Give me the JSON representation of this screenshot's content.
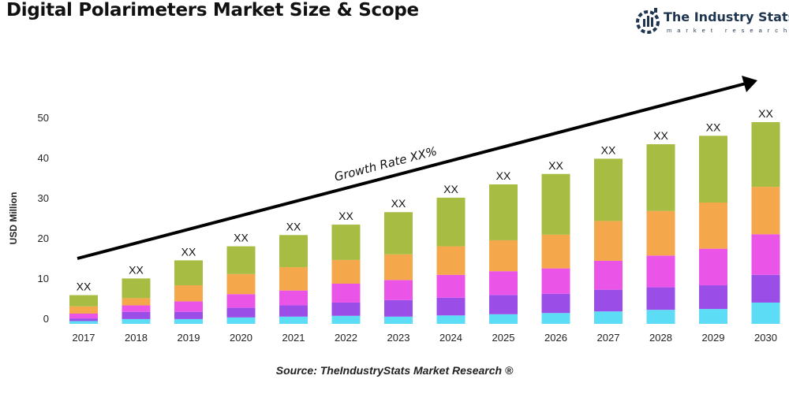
{
  "title": "Digital Polarimeters Market Size & Scope",
  "logo": {
    "name": "The Industry Stats",
    "sub": "market research"
  },
  "source": "Source: TheIndustryStats Market Research ®",
  "chart_data": {
    "type": "bar",
    "stacked": true,
    "title": "Digital Polarimeters Market Size & Scope",
    "xlabel": "",
    "ylabel": "USD Million",
    "ylim": [
      0,
      50
    ],
    "yticks": [
      0,
      10,
      20,
      30,
      40,
      50
    ],
    "grid": false,
    "categories": [
      "2017",
      "2018",
      "2019",
      "2020",
      "2021",
      "2022",
      "2023",
      "2024",
      "2025",
      "2026",
      "2027",
      "2028",
      "2029",
      "2030"
    ],
    "series": [
      {
        "color": "#5ddcf5",
        "values": [
          0.7,
          1.2,
          1.2,
          1.6,
          1.8,
          2.0,
          1.8,
          2.1,
          2.4,
          2.7,
          3.1,
          3.5,
          3.7,
          5.3
        ]
      },
      {
        "color": "#9b4de8",
        "values": [
          0.65,
          1.8,
          1.8,
          2.4,
          2.8,
          3.3,
          4.1,
          4.4,
          4.8,
          4.8,
          5.4,
          5.6,
          5.9,
          6.9
        ]
      },
      {
        "color": "#ea55e8",
        "values": [
          1.2,
          1.6,
          2.6,
          3.4,
          3.7,
          4.7,
          5.0,
          5.7,
          5.9,
          6.3,
          7.2,
          7.9,
          9.1,
          10.1
        ]
      },
      {
        "color": "#f4a74b",
        "values": [
          1.8,
          1.8,
          4.0,
          5.0,
          5.8,
          5.9,
          6.4,
          7.1,
          7.7,
          8.4,
          9.9,
          11.1,
          11.5,
          11.8
        ]
      },
      {
        "color": "#a6bc42",
        "values": [
          2.8,
          4.9,
          6.2,
          6.9,
          8.0,
          8.8,
          10.5,
          12.1,
          13.9,
          15.1,
          15.5,
          16.6,
          16.6,
          16.1
        ]
      }
    ],
    "data_labels": [
      "XX",
      "XX",
      "XX",
      "XX",
      "XX",
      "XX",
      "XX",
      "XX",
      "XX",
      "XX",
      "XX",
      "XX",
      "XX",
      "XX"
    ],
    "annotation": "Growth Rate XX%"
  }
}
